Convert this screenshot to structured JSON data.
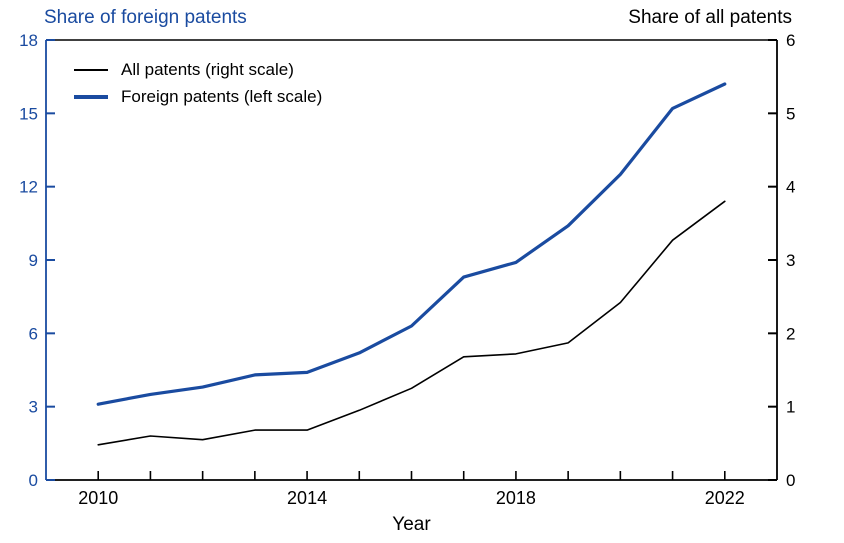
{
  "accent_color": "#1a4ba0",
  "titles": {
    "left": "Share of foreign patents",
    "right": "Share of all patents"
  },
  "xlabel": "Year",
  "legend": {
    "items": [
      {
        "label": "All patents (right scale)",
        "color": "#000000",
        "thickness": 2
      },
      {
        "label": "Foreign patents (left scale)",
        "color": "#1a4ba0",
        "thickness": 4
      }
    ]
  },
  "chart_data": {
    "type": "line",
    "title": "",
    "x": [
      2010,
      2011,
      2012,
      2013,
      2014,
      2015,
      2016,
      2017,
      2018,
      2019,
      2020,
      2021,
      2022
    ],
    "series": [
      {
        "name": "All patents (right scale)",
        "axis": "right",
        "color": "#000000",
        "width": 1.6,
        "values": [
          0.48,
          0.6,
          0.55,
          0.68,
          0.68,
          0.95,
          1.25,
          1.68,
          1.72,
          1.87,
          2.42,
          3.27,
          3.8
        ]
      },
      {
        "name": "Foreign patents (left scale)",
        "axis": "left",
        "color": "#1a4ba0",
        "width": 3.2,
        "values": [
          3.1,
          3.5,
          3.8,
          4.3,
          4.4,
          5.2,
          6.3,
          8.3,
          8.9,
          10.4,
          12.5,
          15.2,
          16.2
        ]
      }
    ],
    "left_axis": {
      "label": "Share of foreign patents",
      "min": 0,
      "max": 18,
      "ticks": [
        0,
        3,
        6,
        9,
        12,
        15,
        18
      ],
      "color": "#1a4ba0"
    },
    "right_axis": {
      "label": "Share of all patents",
      "min": 0,
      "max": 6,
      "ticks": [
        0,
        1,
        2,
        3,
        4,
        5,
        6
      ],
      "color": "#000000"
    },
    "x_axis": {
      "label": "Year",
      "min": 2009,
      "max": 2023,
      "minor_ticks": [
        2010,
        2011,
        2012,
        2013,
        2014,
        2015,
        2016,
        2017,
        2018,
        2019,
        2020,
        2021,
        2022
      ],
      "labeled_ticks": [
        2010,
        2014,
        2018,
        2022
      ],
      "color": "#000000"
    },
    "grid": false,
    "legend_position": "upper-left-inside"
  }
}
